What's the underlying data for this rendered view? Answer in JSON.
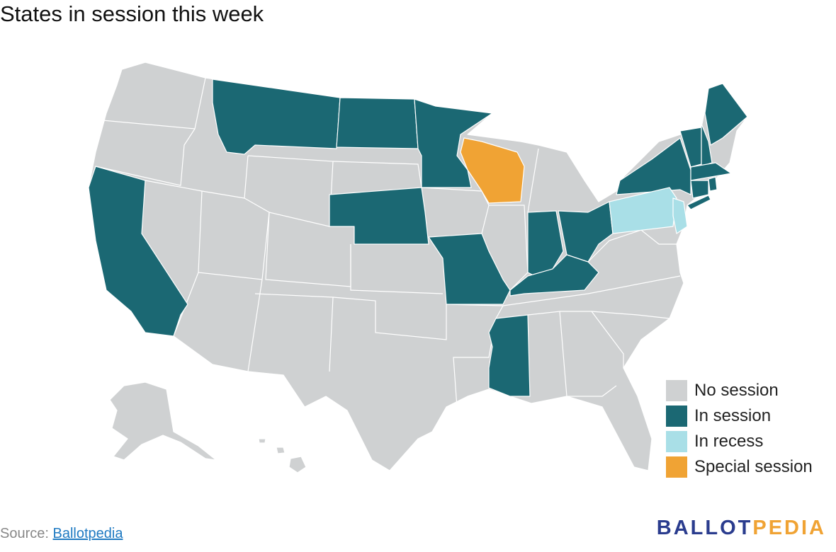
{
  "header": {
    "title": "States in session this week"
  },
  "legend": [
    {
      "label": "No session",
      "color": "#cfd1d2"
    },
    {
      "label": "In session",
      "color": "#1b6873"
    },
    {
      "label": "In recess",
      "color": "#a9dfe7"
    },
    {
      "label": "Special session",
      "color": "#f0a334"
    }
  ],
  "footer": {
    "source_label": "Source:",
    "source_link": "Ballotpedia"
  },
  "logo": {
    "part1": "BALLOT",
    "part2": "PEDIA"
  }
}
